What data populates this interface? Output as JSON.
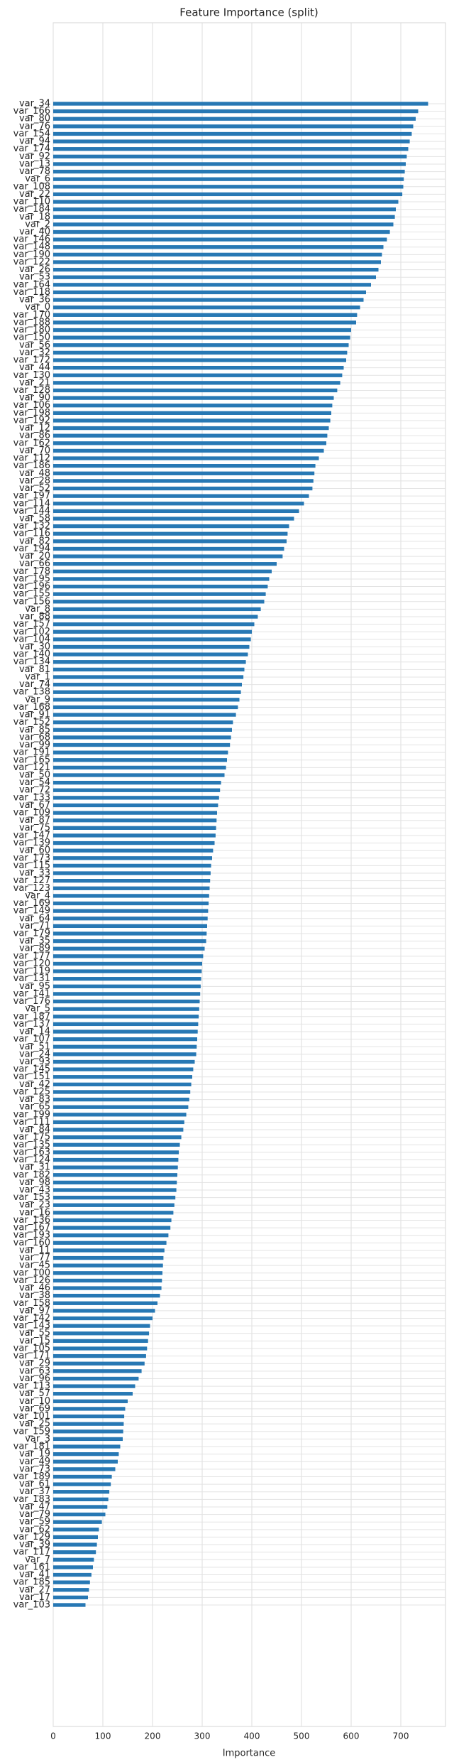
{
  "chart_data": {
    "type": "barh",
    "title": "Feature Importance (split)",
    "xlabel": "Importance",
    "categories": [
      "var_34",
      "var_166",
      "var_80",
      "var_76",
      "var_154",
      "var_94",
      "var_174",
      "var_92",
      "var_13",
      "var_78",
      "var_6",
      "var_108",
      "var_22",
      "var_110",
      "var_184",
      "var_18",
      "var_2",
      "var_40",
      "var_146",
      "var_148",
      "var_190",
      "var_122",
      "var_26",
      "var_53",
      "var_164",
      "var_118",
      "var_36",
      "var_0",
      "var_170",
      "var_188",
      "var_180",
      "var_150",
      "var_56",
      "var_32",
      "var_172",
      "var_44",
      "var_130",
      "var_21",
      "var_128",
      "var_90",
      "var_106",
      "var_198",
      "var_192",
      "var_12",
      "var_86",
      "var_162",
      "var_70",
      "var_112",
      "var_186",
      "var_48",
      "var_28",
      "var_52",
      "var_197",
      "var_114",
      "var_144",
      "var_58",
      "var_132",
      "var_116",
      "var_82",
      "var_194",
      "var_20",
      "var_66",
      "var_178",
      "var_195",
      "var_196",
      "var_155",
      "var_156",
      "var_8",
      "var_88",
      "var_157",
      "var_102",
      "var_104",
      "var_30",
      "var_140",
      "var_134",
      "var_81",
      "var_1",
      "var_74",
      "var_138",
      "var_9",
      "var_168",
      "var_91",
      "var_152",
      "var_85",
      "var_68",
      "var_99",
      "var_191",
      "var_165",
      "var_121",
      "var_50",
      "var_54",
      "var_72",
      "var_133",
      "var_67",
      "var_109",
      "var_87",
      "var_75",
      "var_147",
      "var_139",
      "var_60",
      "var_173",
      "var_115",
      "var_33",
      "var_127",
      "var_123",
      "var_4",
      "var_169",
      "var_149",
      "var_64",
      "var_71",
      "var_179",
      "var_35",
      "var_89",
      "var_177",
      "var_120",
      "var_119",
      "var_131",
      "var_95",
      "var_141",
      "var_176",
      "var_5",
      "var_187",
      "var_137",
      "var_14",
      "var_107",
      "var_51",
      "var_24",
      "var_93",
      "var_145",
      "var_151",
      "var_42",
      "var_125",
      "var_83",
      "var_65",
      "var_199",
      "var_111",
      "var_84",
      "var_175",
      "var_135",
      "var_163",
      "var_124",
      "var_31",
      "var_182",
      "var_98",
      "var_43",
      "var_153",
      "var_23",
      "var_16",
      "var_136",
      "var_167",
      "var_193",
      "var_160",
      "var_11",
      "var_77",
      "var_45",
      "var_100",
      "var_126",
      "var_46",
      "var_38",
      "var_158",
      "var_97",
      "var_142",
      "var_143",
      "var_55",
      "var_15",
      "var_105",
      "var_171",
      "var_29",
      "var_63",
      "var_96",
      "var_113",
      "var_57",
      "var_10",
      "var_69",
      "var_101",
      "var_25",
      "var_159",
      "var_3",
      "var_181",
      "var_19",
      "var_49",
      "var_73",
      "var_189",
      "var_61",
      "var_37",
      "var_183",
      "var_47",
      "var_79",
      "var_59",
      "var_62",
      "var_129",
      "var_39",
      "var_117",
      "var_7",
      "var_161",
      "var_41",
      "var_185",
      "var_27",
      "var_17",
      "var_103"
    ],
    "values": [
      755,
      735,
      730,
      725,
      722,
      718,
      715,
      712,
      710,
      708,
      706,
      705,
      703,
      695,
      690,
      688,
      685,
      678,
      672,
      665,
      662,
      660,
      655,
      650,
      640,
      630,
      625,
      618,
      612,
      610,
      600,
      598,
      595,
      592,
      590,
      585,
      582,
      578,
      572,
      565,
      562,
      560,
      558,
      555,
      552,
      550,
      545,
      535,
      528,
      526,
      524,
      522,
      515,
      505,
      495,
      485,
      475,
      472,
      470,
      465,
      462,
      450,
      440,
      435,
      432,
      428,
      425,
      418,
      412,
      405,
      400,
      398,
      395,
      392,
      388,
      385,
      383,
      380,
      378,
      375,
      372,
      368,
      362,
      360,
      358,
      356,
      352,
      350,
      348,
      345,
      338,
      336,
      334,
      332,
      330,
      329,
      328,
      327,
      325,
      322,
      320,
      318,
      317,
      316,
      315,
      314,
      313,
      312,
      311,
      310,
      309,
      308,
      305,
      302,
      300,
      299,
      298,
      297,
      296,
      295,
      294,
      293,
      292,
      291,
      290,
      289,
      288,
      285,
      282,
      280,
      278,
      276,
      274,
      272,
      268,
      264,
      262,
      258,
      255,
      253,
      252,
      251,
      250,
      249,
      248,
      246,
      244,
      242,
      238,
      236,
      232,
      228,
      224,
      222,
      221,
      220,
      219,
      218,
      215,
      210,
      205,
      200,
      195,
      193,
      191,
      189,
      187,
      184,
      178,
      172,
      165,
      160,
      150,
      145,
      143,
      142,
      141,
      140,
      135,
      132,
      130,
      125,
      118,
      116,
      113,
      111,
      109,
      105,
      98,
      92,
      90,
      88,
      86,
      82,
      80,
      77,
      74,
      72,
      70,
      65
    ],
    "color": "#2778b4",
    "xlim": [
      0,
      790
    ],
    "xticks": [
      0,
      100,
      200,
      300,
      400,
      500,
      600,
      700
    ],
    "grid": true
  }
}
